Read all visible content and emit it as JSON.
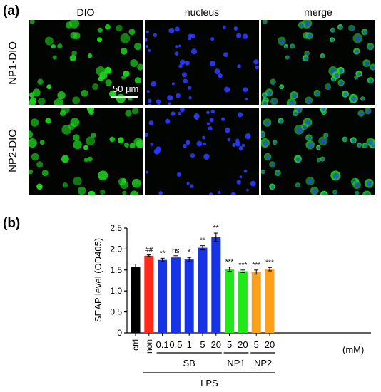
{
  "figure": {
    "panel_a_label": "(a)",
    "panel_b_label": "(b)",
    "columns": [
      "DIO",
      "nucleus",
      "merge"
    ],
    "rows": [
      "NP1-DIO",
      "NP2-DIO"
    ],
    "scale_bar": "50 μm",
    "icons": {
      "green_cells": "dio-cell",
      "blue_nuclei": "nucleus-dot"
    },
    "colors": {
      "dio": "#1fd41f",
      "nucleus": "#2b3bff",
      "background": "#020402"
    }
  },
  "chart_data": {
    "type": "bar",
    "ylabel": "SEAP level (OD405)",
    "ylim": [
      0,
      2.5
    ],
    "yticks": [
      "0",
      "0.5",
      "1.0",
      "1.5",
      "2.0",
      "2.5"
    ],
    "categories": [
      "ctrl",
      "non",
      "0.1",
      "0.5",
      "1",
      "5",
      "20",
      "5",
      "20",
      "5",
      "20"
    ],
    "unit_label": "(mM)",
    "values": [
      1.58,
      1.84,
      1.74,
      1.8,
      1.75,
      2.03,
      2.28,
      1.52,
      1.47,
      1.45,
      1.52
    ],
    "errors": [
      0.06,
      0.02,
      0.04,
      0.04,
      0.05,
      0.05,
      0.1,
      0.05,
      0.03,
      0.05,
      0.04
    ],
    "significance": [
      "",
      "##",
      "**",
      "ns",
      "*",
      "**",
      "**",
      "***",
      "***",
      "***",
      "***"
    ],
    "colors": [
      "#000000",
      "#ff2a1a",
      "#1733e8",
      "#1733e8",
      "#1733e8",
      "#1733e8",
      "#1733e8",
      "#22e81a",
      "#22e81a",
      "#ff9f1a",
      "#ff9f1a"
    ],
    "groups": [
      {
        "label": "SB",
        "from": 2,
        "to": 6
      },
      {
        "label": "NP1",
        "from": 7,
        "to": 8
      },
      {
        "label": "NP2",
        "from": 9,
        "to": 10
      }
    ],
    "lps_label": "LPS",
    "lps_range": [
      1,
      10
    ]
  }
}
